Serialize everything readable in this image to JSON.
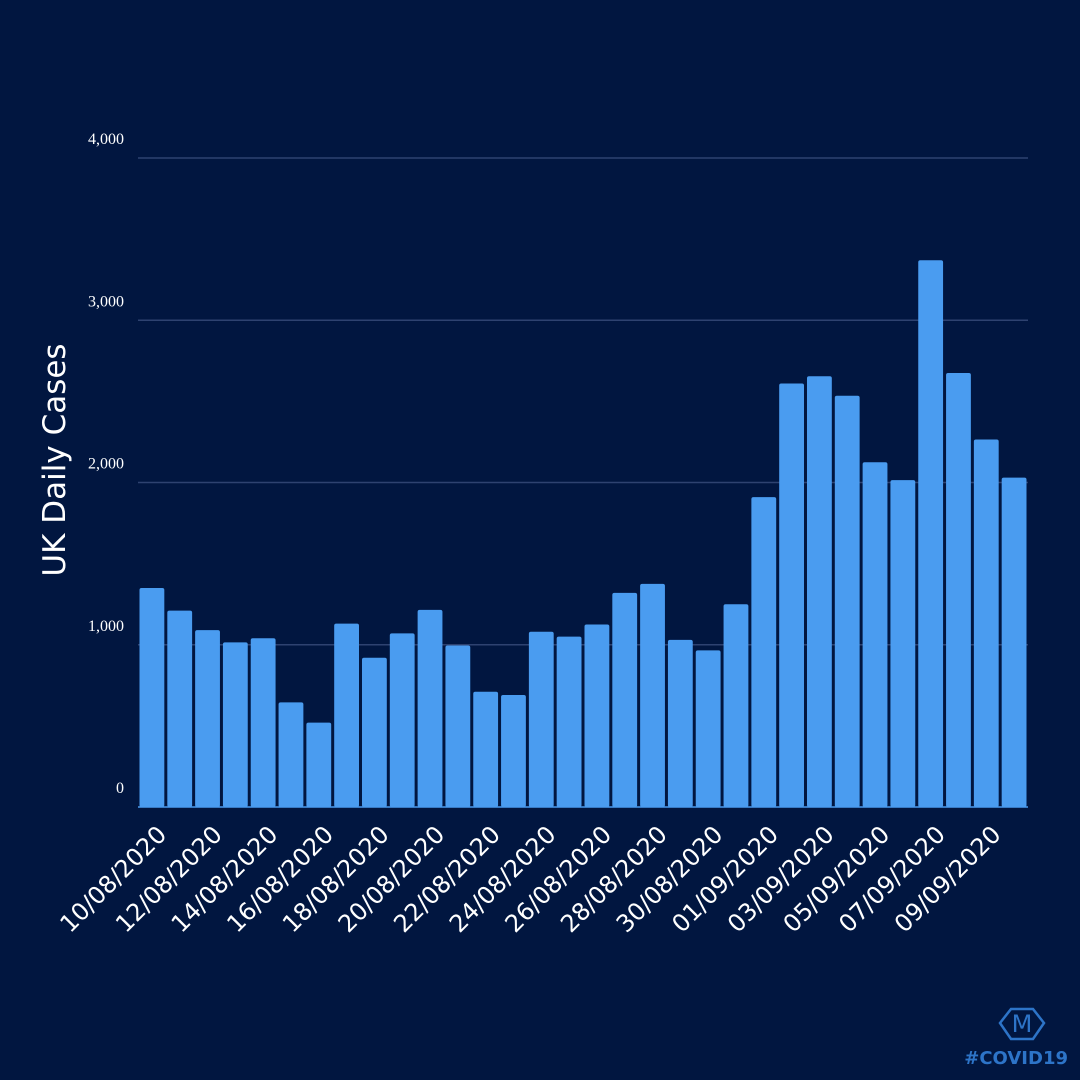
{
  "colors": {
    "background": "#011640",
    "bar": "#4a9cf0",
    "grid": "#2e4270",
    "text": "#ffffff",
    "brand": "#2d74c8"
  },
  "chart_data": {
    "type": "bar",
    "title": "",
    "xlabel": "",
    "ylabel": "UK Daily Cases",
    "ylim": [
      0,
      4000
    ],
    "yticks": [
      0,
      1000,
      2000,
      3000,
      4000
    ],
    "ytick_labels": [
      "0",
      "1,000",
      "2,000",
      "3,000",
      "4,000"
    ],
    "grid": true,
    "categories": [
      "10/08/2020",
      "11/08/2020",
      "12/08/2020",
      "13/08/2020",
      "14/08/2020",
      "15/08/2020",
      "16/08/2020",
      "17/08/2020",
      "18/08/2020",
      "19/08/2020",
      "20/08/2020",
      "21/08/2020",
      "22/08/2020",
      "23/08/2020",
      "24/08/2020",
      "25/08/2020",
      "26/08/2020",
      "27/08/2020",
      "28/08/2020",
      "29/08/2020",
      "30/08/2020",
      "31/08/2020",
      "01/09/2020",
      "02/09/2020",
      "03/09/2020",
      "04/09/2020",
      "05/09/2020",
      "06/09/2020",
      "07/09/2020",
      "08/09/2020",
      "09/09/2020",
      "10/09/2020"
    ],
    "xtick_labels": [
      "10/08/2020",
      "12/08/2020",
      "14/08/2020",
      "16/08/2020",
      "18/08/2020",
      "20/08/2020",
      "22/08/2020",
      "24/08/2020",
      "26/08/2020",
      "28/08/2020",
      "30/08/2020",
      "01/09/2020",
      "03/09/2020",
      "05/09/2020",
      "07/09/2020",
      "09/09/2020"
    ],
    "values": [
      1350,
      1210,
      1090,
      1015,
      1040,
      645,
      520,
      1130,
      920,
      1070,
      1215,
      995,
      710,
      690,
      1080,
      1050,
      1125,
      1320,
      1375,
      1030,
      965,
      1250,
      1910,
      2610,
      2655,
      2535,
      2125,
      2015,
      3370,
      2675,
      2265,
      2030
    ]
  },
  "branding": {
    "logo_letter": "M",
    "hashtag": "#COVID19"
  }
}
